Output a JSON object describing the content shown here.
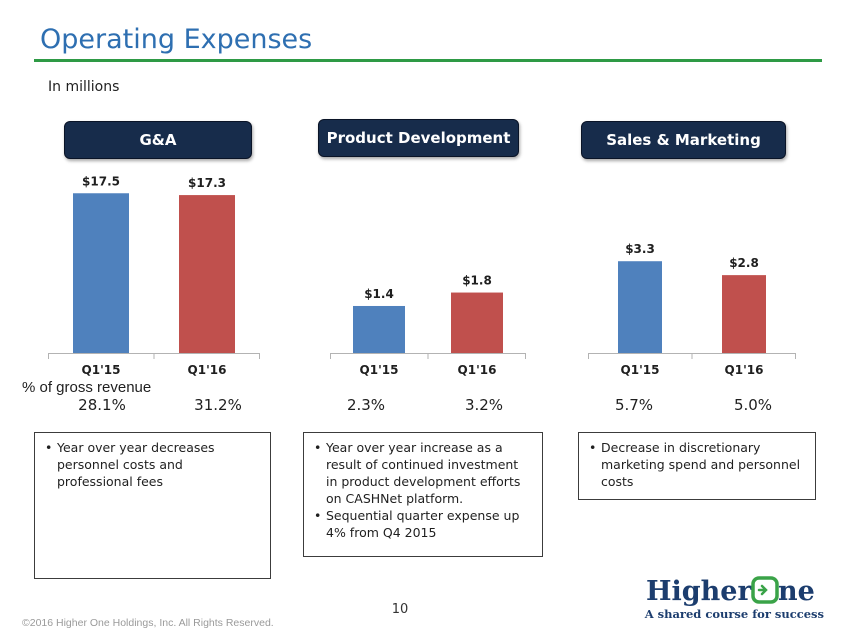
{
  "page": {
    "title": "Operating Expenses",
    "subtitle": "In millions",
    "pct_row_label": "% of gross revenue",
    "page_number": "10",
    "copyright": "©2016 Higher One Holdings, Inc. All Rights Reserved."
  },
  "logo": {
    "name": "Higher One",
    "word1": "Higher",
    "word2": "ne",
    "tagline": "A shared course for success"
  },
  "colors": {
    "title": "#2e6fb1",
    "rule": "#2e9a45",
    "header_bg": "#172c4b",
    "q1_15": "#4f81bd",
    "q1_16": "#c0504d",
    "logo_blue": "#1c3d6e",
    "logo_green": "#3aa348"
  },
  "chart_data": [
    {
      "type": "bar",
      "title": "G&A",
      "categories": [
        "Q1'15",
        "Q1'16"
      ],
      "values": [
        17.5,
        17.3
      ],
      "value_labels": [
        "$17.5",
        "$17.3"
      ],
      "ylim": [
        0,
        19.5
      ],
      "pct_gross_revenue": [
        "28.1%",
        "31.2%"
      ],
      "note": [
        "Year over year decreases personnel costs and professional fees"
      ]
    },
    {
      "type": "bar",
      "title": "Product Development",
      "categories": [
        "Q1'15",
        "Q1'16"
      ],
      "values": [
        1.4,
        1.8
      ],
      "value_labels": [
        "$1.4",
        "$1.8"
      ],
      "ylim": [
        0,
        5.3
      ],
      "pct_gross_revenue": [
        "2.3%",
        "3.2%"
      ],
      "note": [
        "Year over year increase as a result of continued investment in product development efforts on CASHNet platform.",
        "Sequential quarter expense up 4% from Q4 2015"
      ]
    },
    {
      "type": "bar",
      "title": "Sales & Marketing",
      "categories": [
        "Q1'15",
        "Q1'16"
      ],
      "values": [
        3.3,
        2.8
      ],
      "value_labels": [
        "$3.3",
        "$2.8"
      ],
      "ylim": [
        0,
        6.4
      ],
      "pct_gross_revenue": [
        "5.7%",
        "5.0%"
      ],
      "note": [
        "Decrease in discretionary marketing spend and personnel costs"
      ]
    }
  ]
}
